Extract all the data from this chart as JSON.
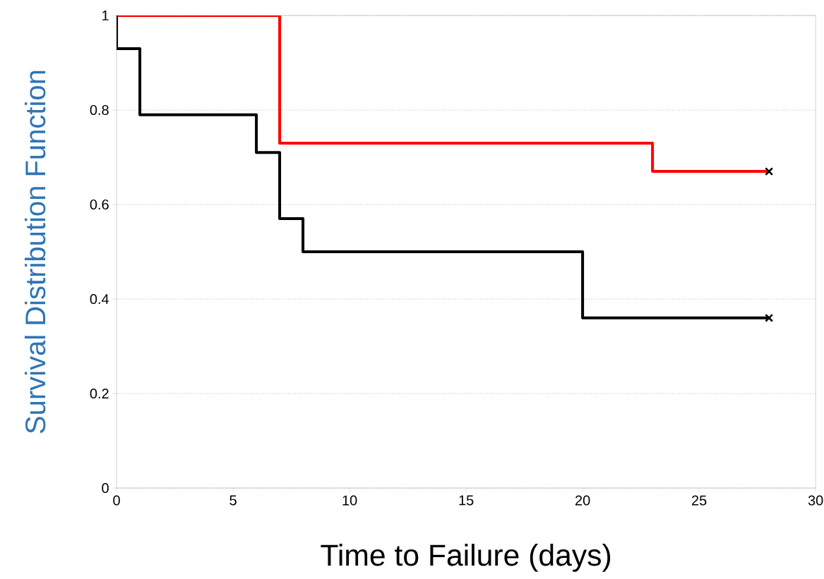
{
  "chart_data": {
    "type": "step",
    "xlabel": "Time to Failure (days)",
    "ylabel": "Survival Distribution Function",
    "xlim": [
      0,
      30
    ],
    "xticks": [
      0,
      5,
      10,
      15,
      20,
      25,
      30
    ],
    "ylim": [
      0,
      1
    ],
    "yticks": [
      0,
      0.2,
      0.4,
      0.6,
      0.8,
      1
    ],
    "grid": "y",
    "series": [
      {
        "color": "#ff0000",
        "x": [
          0,
          7,
          23,
          28
        ],
        "values": [
          1,
          0.73,
          0.67,
          0.67
        ]
      },
      {
        "color": "#000000",
        "x": [
          0,
          0,
          1,
          6,
          7,
          8,
          20,
          28
        ],
        "values": [
          1,
          0.93,
          0.79,
          0.71,
          0.57,
          0.5,
          0.36,
          0.36
        ]
      },
      {
        "type": "scatter",
        "color": "#000000",
        "marker": "cross",
        "x": [
          28,
          28
        ],
        "values": [
          0.67,
          0.36
        ]
      }
    ]
  }
}
